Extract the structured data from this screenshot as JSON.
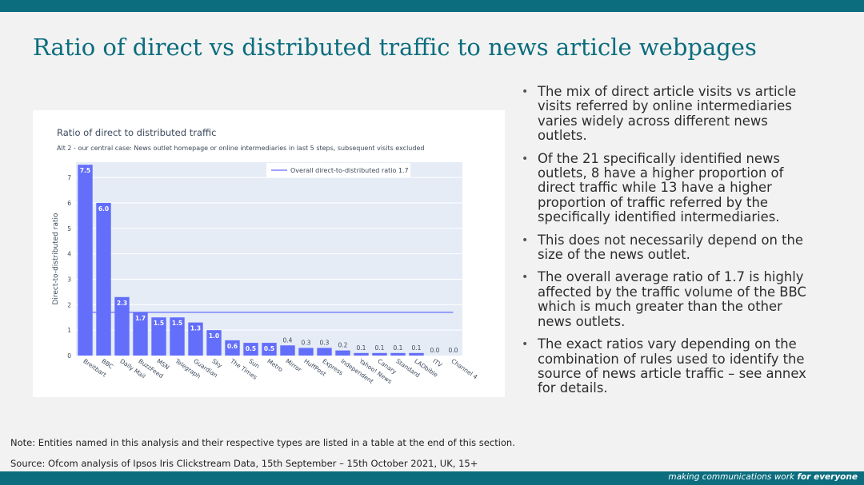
{
  "slide": {
    "title": "Ratio of direct vs distributed traffic to news article webpages",
    "bullets": [
      "The mix of direct article visits vs article visits referred by online intermediaries varies widely across different news outlets.",
      "Of the 21 specifically identified news outlets, 8 have a higher proportion of direct traffic while 13 have a higher proportion of traffic referred by the specifically identified intermediaries.",
      "This does not necessarily depend on the size of the news outlet.",
      "The overall average ratio of 1.7 is highly affected by the traffic volume of the BBC which is much greater than the other news outlets.",
      "The exact ratios vary depending on the combination of rules used to identify the source of news article traffic – see annex for details."
    ],
    "note": "Note: Entities named in this analysis and their respective types are listed in a table at the end of this section.",
    "source": "Source: Ofcom analysis of Ipsos Iris Clickstream Data, 15th September – 15th October 2021, UK, 15+",
    "tagline_prefix": "making communications work ",
    "tagline_bold": "for everyone",
    "colors": {
      "brand": "#0b6d7e",
      "bar": "#636efa",
      "plot_bg": "#e5ecf6"
    }
  },
  "chart_data": {
    "type": "bar",
    "title": "Ratio of direct to distributed traffic",
    "subtitle": "Alt 2 - our central case: News outlet homepage or online intermediaries in last 5 steps, subsequent visits excluded",
    "ylabel": "Direct-to-distributed ratio",
    "xlabel": "",
    "ylim": [
      0,
      7.6
    ],
    "yticks": [
      0,
      1,
      2,
      3,
      4,
      5,
      6,
      7
    ],
    "categories": [
      "Breitbart",
      "BBC",
      "Daily Mail",
      "BuzzFeed",
      "MSN",
      "Telegraph",
      "Guardian",
      "Sky",
      "The Times",
      "Sun",
      "Metro",
      "Mirror",
      "HuffPost",
      "Express",
      "Independent",
      "Yahoo! News",
      "Canary",
      "Standard",
      "LADbible",
      "ITV",
      "Channel 4"
    ],
    "values": [
      7.5,
      6.0,
      2.3,
      1.7,
      1.5,
      1.5,
      1.3,
      1.0,
      0.6,
      0.5,
      0.5,
      0.4,
      0.3,
      0.3,
      0.2,
      0.1,
      0.1,
      0.1,
      0.1,
      0.0,
      0.0
    ],
    "labels": [
      "7.5",
      "6.0",
      "2.3",
      "1.7",
      "1.5",
      "1.5",
      "1.3",
      "1.0",
      "0.6",
      "0.5",
      "0.5",
      "0.4",
      "0.3",
      "0.3",
      "0.2",
      "0.1",
      "0.1",
      "0.1",
      "0.1",
      "0.0",
      "0.0"
    ],
    "reference_line": {
      "name": "Overall direct-to-distributed ratio 1.7",
      "value": 1.7
    },
    "legend_position": "top-right",
    "grid": true
  }
}
